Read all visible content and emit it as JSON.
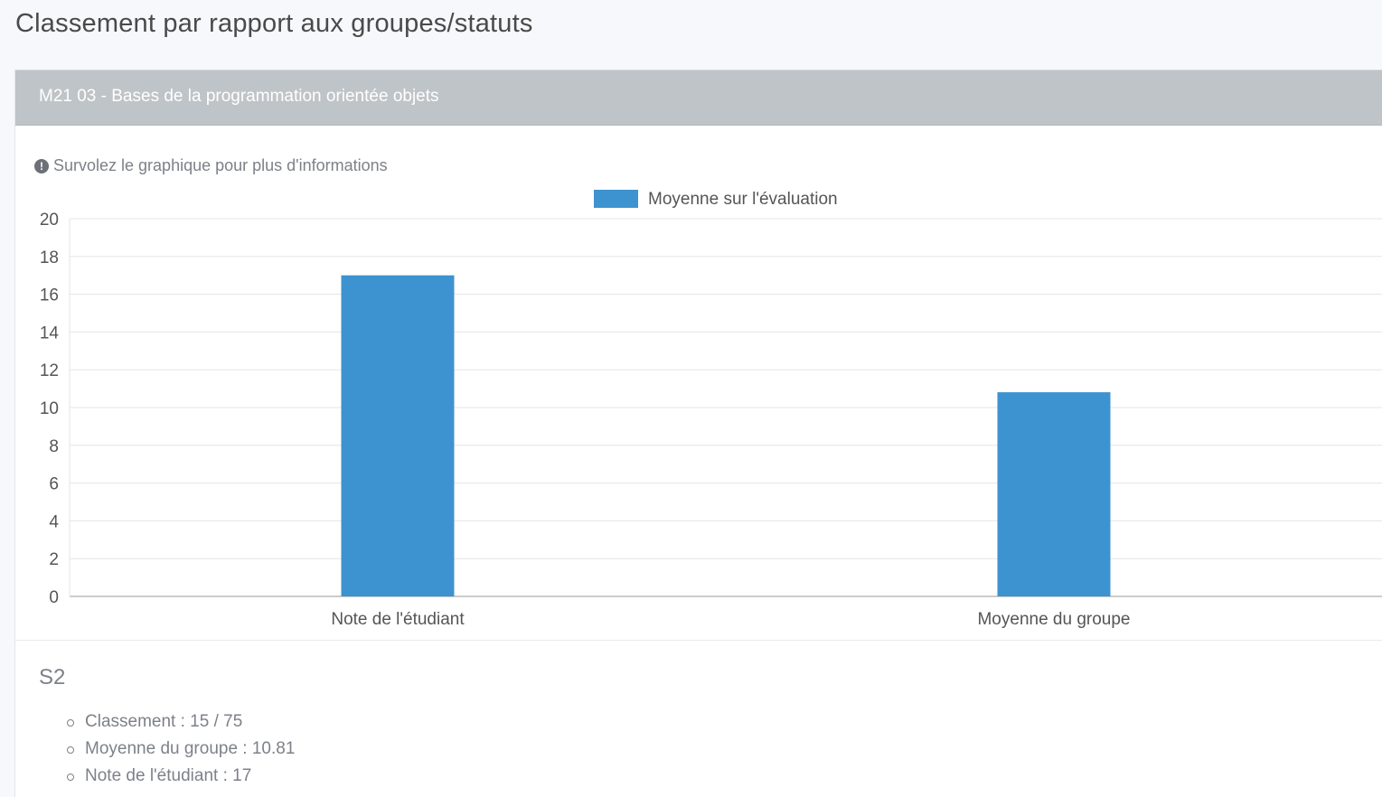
{
  "page": {
    "title": "Classement par rapport aux groupes/statuts"
  },
  "card": {
    "header_title": "M21 03 - Bases de la programmation orientée objets",
    "hint_text": "Survolez le graphique pour plus d'informations",
    "hint_icon": "exclamation-circle-icon"
  },
  "chart_data": {
    "type": "bar",
    "categories": [
      "Note de l'étudiant",
      "Moyenne du groupe"
    ],
    "series": [
      {
        "name": "Moyenne sur l'évaluation",
        "values": [
          17,
          10.81
        ],
        "color": "#3d93cf"
      }
    ],
    "ylim": [
      0,
      20
    ],
    "yticks": [
      "0",
      "2",
      "4",
      "6",
      "8",
      "10",
      "12",
      "14",
      "16",
      "18",
      "20"
    ],
    "grid": true,
    "legend_position": "top-center"
  },
  "summary": {
    "group_title": "S2",
    "items": [
      "Classement : 15 / 75",
      "Moyenne du groupe : 10.81",
      "Note de l'étudiant : 17"
    ]
  }
}
